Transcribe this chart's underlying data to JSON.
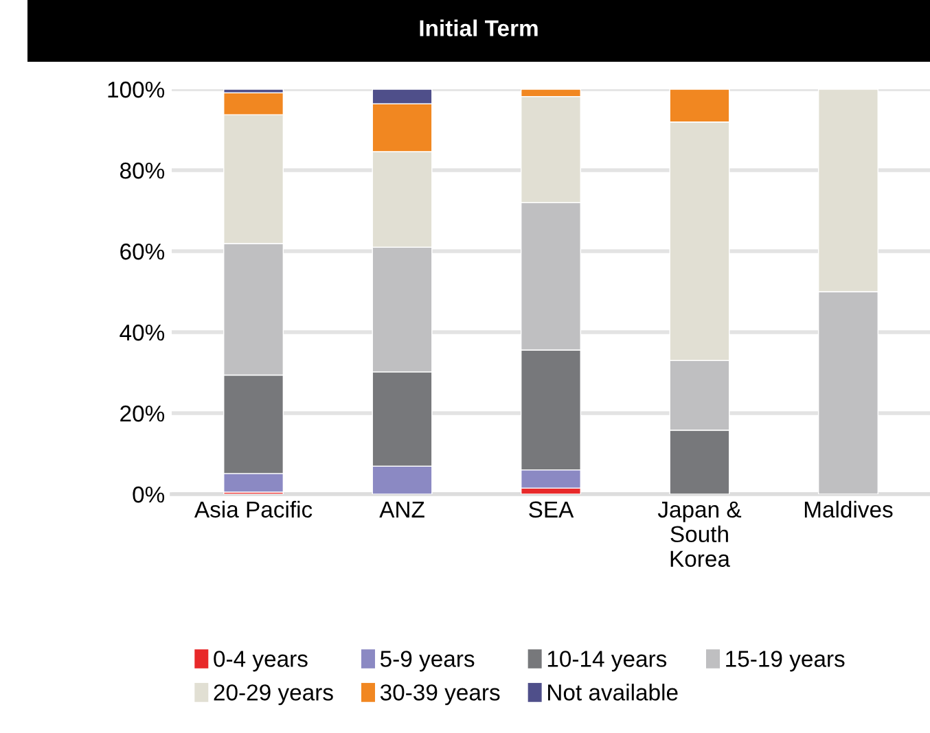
{
  "chart_data": {
    "type": "bar",
    "title": "Initial Term",
    "stacked": true,
    "categories": [
      "Asia Pacific",
      "ANZ",
      "SEA",
      "Japan &\nSouth\nKorea",
      "Maldives"
    ],
    "series": [
      {
        "name": "0-4 years",
        "color": "#e8292a",
        "values": [
          0.5,
          0,
          1.5,
          0,
          0
        ]
      },
      {
        "name": "5-9 years",
        "color": "#8b89c3",
        "values": [
          4.6,
          6.9,
          4.5,
          0,
          0
        ]
      },
      {
        "name": "10-14 years",
        "color": "#77787b",
        "values": [
          24.3,
          23.3,
          29.6,
          15.8,
          0
        ]
      },
      {
        "name": "15-19 years",
        "color": "#bfbfc1",
        "values": [
          32.5,
          30.8,
          36.4,
          17.2,
          50
        ]
      },
      {
        "name": "20-29 years",
        "color": "#e1dfd3",
        "values": [
          31.8,
          23.6,
          26.2,
          58.9,
          50
        ]
      },
      {
        "name": "30-39 years",
        "color": "#f18721",
        "values": [
          5.4,
          11.8,
          1.8,
          8.1,
          0
        ]
      },
      {
        "name": "Not available",
        "color": "#4f4f8a",
        "values": [
          0.9,
          3.6,
          0,
          0,
          0
        ]
      }
    ],
    "ylim": [
      0,
      100
    ],
    "yticks": [
      {
        "value": 0,
        "label": "0%"
      },
      {
        "value": 20,
        "label": "20%"
      },
      {
        "value": 40,
        "label": "40%"
      },
      {
        "value": 60,
        "label": "60%"
      },
      {
        "value": 80,
        "label": "80%"
      },
      {
        "value": 100,
        "label": "100%"
      }
    ],
    "grid": "y",
    "legend": "bottom"
  }
}
